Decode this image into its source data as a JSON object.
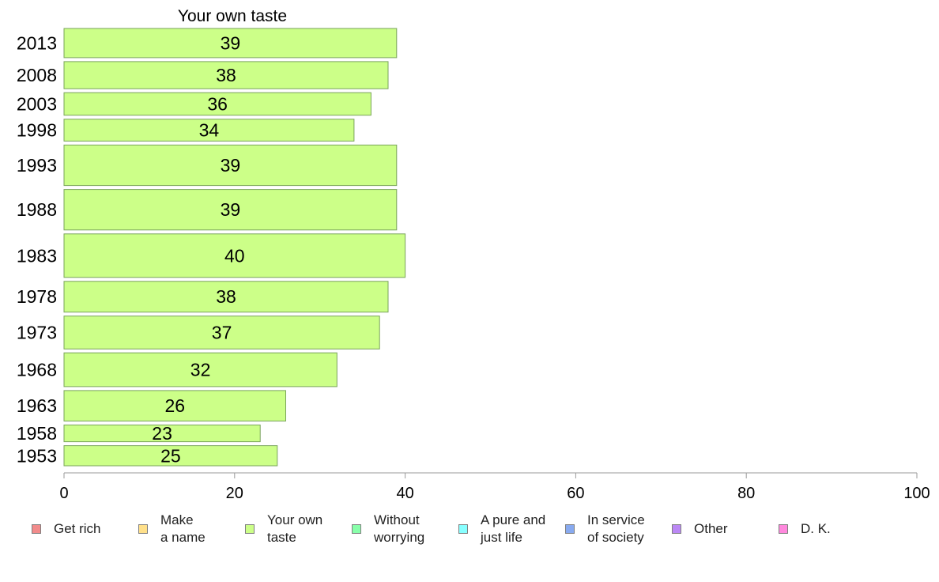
{
  "chart_data": {
    "type": "bar",
    "orientation": "horizontal",
    "title": "Your own taste",
    "categories": [
      "2013",
      "2008",
      "2003",
      "1998",
      "1993",
      "1988",
      "1983",
      "1978",
      "1973",
      "1968",
      "1963",
      "1958",
      "1953"
    ],
    "values": [
      39,
      38,
      36,
      34,
      39,
      39,
      40,
      38,
      37,
      32,
      26,
      23,
      25
    ],
    "value_labels": [
      "39",
      "38",
      "36",
      "34",
      "39",
      "39",
      "40",
      "38",
      "37",
      "32",
      "26",
      "23",
      "25"
    ],
    "bar_weights": [
      0.96,
      0.89,
      0.74,
      0.72,
      1.33,
      1.33,
      1.43,
      1.01,
      1.08,
      1.11,
      1.0,
      0.55,
      0.66
    ],
    "xlim": [
      0,
      100
    ],
    "xticks": [
      "0",
      "20",
      "40",
      "60",
      "80",
      "100"
    ],
    "bar_color": "#ccff88",
    "bar_edge_color": "#79a35a",
    "grid": false,
    "legend_position": "bottom",
    "legend": [
      {
        "label": "Get rich",
        "color": "#f28b8b"
      },
      {
        "label": "Make\na name",
        "color": "#ffe08a"
      },
      {
        "label": "Your own\ntaste",
        "color": "#ccff88"
      },
      {
        "label": "Without\nworrying",
        "color": "#88ffaa"
      },
      {
        "label": "A pure and\njust life",
        "color": "#88ffff"
      },
      {
        "label": "In service\nof society",
        "color": "#88aaf0"
      },
      {
        "label": "Other",
        "color": "#bb88f5"
      },
      {
        "label": "D. K.",
        "color": "#ff88dd"
      }
    ]
  }
}
